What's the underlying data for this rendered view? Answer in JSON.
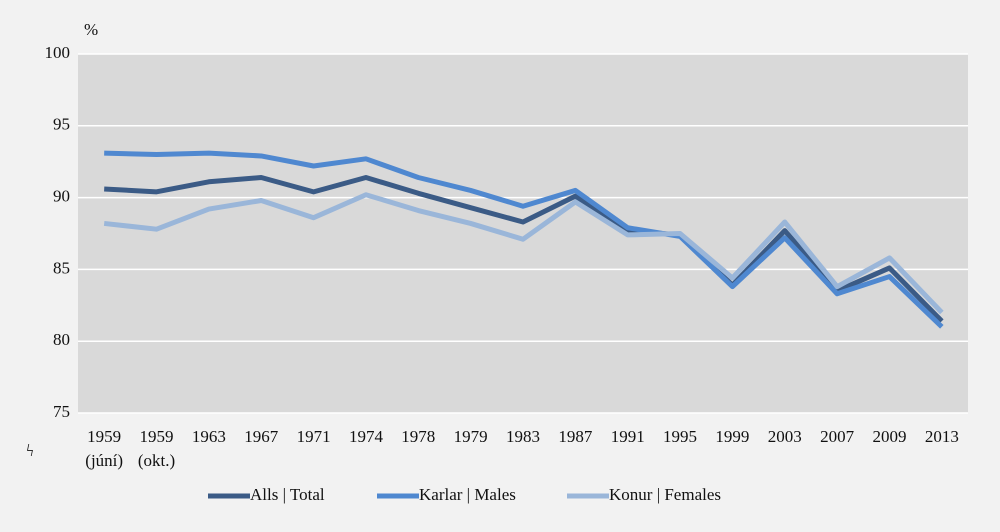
{
  "chart_data": {
    "type": "line",
    "y_axis_label": "%",
    "annotation": "ϟ",
    "categories": [
      "1959 (júní)",
      "1959 (okt.)",
      "1963",
      "1967",
      "1971",
      "1974",
      "1978",
      "1979",
      "1983",
      "1987",
      "1991",
      "1995",
      "1999",
      "2003",
      "2007",
      "2009",
      "2013"
    ],
    "series": [
      {
        "name": "Alls | Total",
        "color": "#3b5b86",
        "values": [
          90.6,
          90.4,
          91.1,
          91.4,
          90.4,
          91.4,
          90.3,
          89.3,
          88.3,
          90.1,
          87.7,
          87.4,
          83.9,
          87.7,
          83.5,
          85.1,
          81.4
        ]
      },
      {
        "name": "Karlar | Males",
        "color": "#4f88d0",
        "values": [
          93.1,
          93.0,
          93.1,
          92.9,
          92.2,
          92.7,
          91.4,
          90.5,
          89.4,
          90.5,
          87.9,
          87.3,
          83.8,
          87.2,
          83.3,
          84.5,
          81.0
        ]
      },
      {
        "name": "Konur | Females",
        "color": "#9ab6d9",
        "values": [
          88.2,
          87.8,
          89.2,
          89.8,
          88.6,
          90.2,
          89.1,
          88.2,
          87.1,
          89.7,
          87.4,
          87.5,
          84.4,
          88.3,
          83.8,
          85.8,
          82.0
        ]
      }
    ],
    "ylim": [
      75,
      100
    ],
    "yticks": [
      75,
      80,
      85,
      90,
      95,
      100
    ],
    "grid": true,
    "legend": "bottom"
  }
}
